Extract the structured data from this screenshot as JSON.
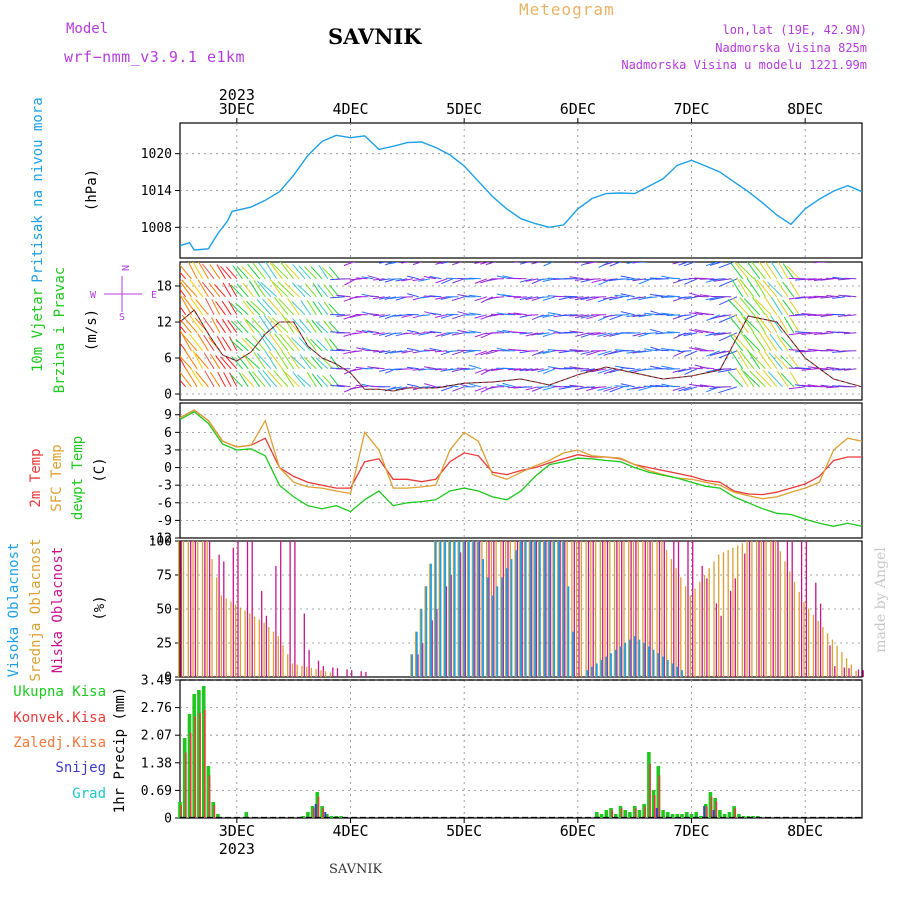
{
  "header": {
    "model_label": "Model",
    "model_name": "wrf−nmm_v3.9.1  e1km",
    "station": "SAVNIK",
    "product": "Meteogram",
    "lonlat": "lon,lat (19E, 42.9N)",
    "elevation": "Nadmorska Visina 825m",
    "model_elevation": "Nadmorska Visina u modelu 1221.99m",
    "footer_station": "SAVNIK",
    "credit": "made by Angel"
  },
  "colors": {
    "pressure": "#1ea0e6",
    "temp2m": "#e83a3a",
    "sfc_temp": "#dca032",
    "dewpoint": "#1ec81e",
    "cloud_high": "#1ea0e6",
    "cloud_mid": "#dca032",
    "cloud_low": "#c8148c",
    "precip_total": "#1ec81e",
    "precip_conv": "#e83a3a",
    "precip_frz": "#f0783c",
    "precip_snow": "#3c3cc8",
    "precip_grad": "#1ec8c8",
    "header_purple": "#b43cdc",
    "header_orange": "#e6b464"
  },
  "chart_data": {
    "type": "line",
    "time_axis": {
      "year": "2023",
      "start": "2023-12-02T12:00",
      "end": "2023-12-08T12:00",
      "tick_labels": [
        "3DEC",
        "4DEC",
        "5DEC",
        "6DEC",
        "7DEC",
        "8DEC"
      ]
    },
    "panels": [
      {
        "id": "pressure",
        "ylabel": "Pritisak na nivou mora",
        "unit": "(hPa)",
        "yticks": [
          1008,
          1014,
          1020
        ],
        "ylim": [
          1003,
          1025
        ],
        "series": [
          {
            "key": "pressure",
            "x_hours": [
              0,
              2,
              3,
              6,
              8,
              10,
              11,
              15,
              18,
              21,
              24,
              27,
              30,
              33,
              36,
              39,
              42,
              45,
              48,
              51,
              54,
              57,
              60,
              63,
              66,
              69,
              72,
              75,
              78,
              81,
              84,
              87,
              90,
              93,
              96,
              99,
              102,
              105,
              108,
              111,
              114,
              117,
              120,
              123,
              126,
              129,
              132,
              135,
              138,
              141,
              144
            ],
            "values": [
              1005,
              1005.5,
              1004.3,
              1004.5,
              1007,
              1009,
              1010.6,
              1011.3,
              1012.4,
              1013.8,
              1016.5,
              1019.7,
              1022,
              1023,
              1022.6,
              1022.9,
              1020.7,
              1021.2,
              1021.8,
              1021.9,
              1021,
              1019.8,
              1018,
              1015.5,
              1013,
              1011,
              1009.4,
              1008.6,
              1008,
              1008.4,
              1011,
              1012.7,
              1013.5,
              1013.6,
              1013.5,
              1014.7,
              1015.9,
              1018.1,
              1018.9,
              1018,
              1017,
              1015.4,
              1013.8,
              1012,
              1010,
              1008.5,
              1011,
              1012.6,
              1013.9,
              1014.8,
              1013.8
            ]
          }
        ]
      },
      {
        "id": "wind",
        "ylabel_line1": "10m Vjetar",
        "ylabel_line2": "Brzina i Pravac",
        "unit": "(m/s)",
        "compass": {
          "n": "N",
          "s": "S",
          "w": "W",
          "e": "E"
        },
        "yticks": [
          0,
          6,
          12,
          18
        ],
        "ylim": [
          -1,
          22
        ],
        "series": [
          {
            "key": "wind_speed",
            "x_hours": [
              0,
              3,
              6,
              9,
              12,
              15,
              18,
              21,
              24,
              27,
              30,
              33,
              36,
              39,
              42,
              45,
              48,
              54,
              60,
              66,
              72,
              78,
              84,
              90,
              96,
              102,
              108,
              114,
              120,
              126,
              132,
              138,
              144
            ],
            "values": [
              12,
              14,
              10,
              6.5,
              5.5,
              7,
              10,
              12,
              12,
              8,
              6,
              5,
              3.5,
              0.8,
              0.8,
              0.5,
              1,
              1,
              1.8,
              2,
              2.5,
              1.5,
              3.2,
              4.5,
              3.5,
              2.5,
              3,
              4,
              13,
              12,
              6,
              2.5,
              1.2
            ]
          }
        ]
      },
      {
        "id": "temperature",
        "ylabel_line1": "2m Temp",
        "ylabel_line2": "SFC Temp",
        "ylabel_line3": "dewpt Temp",
        "unit": "(C)",
        "yticks": [
          -12,
          -9,
          -6,
          -3,
          0,
          3,
          6,
          9
        ],
        "ylim": [
          -12,
          11
        ],
        "series": [
          {
            "key": "temp2m",
            "name": "2m Temp",
            "x_hours": [
              0,
              3,
              6,
              9,
              12,
              15,
              18,
              21,
              24,
              27,
              30,
              33,
              36,
              39,
              42,
              45,
              48,
              51,
              54,
              57,
              60,
              63,
              66,
              69,
              72,
              75,
              78,
              81,
              84,
              87,
              90,
              93,
              96,
              99,
              102,
              105,
              108,
              111,
              114,
              117,
              120,
              123,
              126,
              129,
              132,
              135,
              138,
              141,
              144
            ],
            "values": [
              8.5,
              9.8,
              8,
              4.5,
              3.5,
              3.8,
              5,
              0,
              -1.5,
              -2.5,
              -3,
              -3.5,
              -3.5,
              1,
              1.5,
              -2,
              -2,
              -2.4,
              -2,
              1,
              2.5,
              2,
              -0.8,
              -1.2,
              -0.5,
              0,
              0.8,
              1.5,
              2.2,
              1.8,
              1.8,
              1.5,
              0.5,
              0,
              -0.5,
              -1,
              -1.5,
              -2.2,
              -2.5,
              -4,
              -4.5,
              -4.6,
              -4.2,
              -3.5,
              -2.8,
              -1.5,
              1.2,
              1.8,
              1.8
            ]
          },
          {
            "key": "sfc_temp",
            "name": "SFC Temp",
            "x_hours": [
              0,
              3,
              6,
              9,
              12,
              15,
              18,
              21,
              24,
              27,
              30,
              33,
              36,
              39,
              42,
              45,
              48,
              51,
              54,
              57,
              60,
              63,
              66,
              69,
              72,
              75,
              78,
              81,
              84,
              87,
              90,
              93,
              96,
              99,
              102,
              105,
              108,
              111,
              114,
              117,
              120,
              123,
              126,
              129,
              132,
              135,
              138,
              141,
              144
            ],
            "values": [
              8.5,
              9.8,
              8,
              4.5,
              3.5,
              3.8,
              8,
              0,
              -2.5,
              -3.3,
              -3.5,
              -4,
              -4.4,
              6,
              3,
              -3.5,
              -3.5,
              -3.3,
              -3,
              3,
              6,
              4.5,
              -1.2,
              -2,
              -0.8,
              0.3,
              1.2,
              2.5,
              3,
              2,
              1.8,
              1.6,
              0.5,
              -0.5,
              -1.2,
              -1.8,
              -2,
              -2.5,
              -3,
              -4.2,
              -4.8,
              -5.3,
              -5,
              -4.2,
              -3.5,
              -2.5,
              3,
              5,
              4.5
            ]
          },
          {
            "key": "dewpoint",
            "name": "dewpt Temp",
            "x_hours": [
              0,
              3,
              6,
              9,
              12,
              15,
              18,
              21,
              24,
              27,
              30,
              33,
              36,
              39,
              42,
              45,
              48,
              51,
              54,
              57,
              60,
              63,
              66,
              69,
              72,
              75,
              78,
              81,
              84,
              87,
              90,
              93,
              96,
              99,
              102,
              105,
              108,
              111,
              114,
              117,
              120,
              123,
              126,
              129,
              132,
              135,
              138,
              141,
              144
            ],
            "values": [
              8.2,
              9.5,
              7.5,
              4,
              3,
              3.2,
              2,
              -3,
              -5,
              -6.5,
              -7,
              -6.5,
              -7.5,
              -5.5,
              -4,
              -6.5,
              -6,
              -5.8,
              -5.5,
              -4,
              -3.5,
              -4,
              -5,
              -5.5,
              -4,
              -1.5,
              0.5,
              1,
              1.6,
              1.5,
              1.2,
              1,
              0,
              -0.8,
              -1.3,
              -1.8,
              -2.5,
              -3.2,
              -3.5,
              -5,
              -6,
              -7,
              -7.8,
              -8,
              -8.8,
              -9.5,
              -10,
              -9.5,
              -10
            ]
          }
        ]
      },
      {
        "id": "clouds",
        "ylabel_line1": "Visoka Oblacnost",
        "ylabel_line2": "Srednja Oblacnost",
        "ylabel_line3": "Niska Oblacnost",
        "unit": "(%)",
        "yticks": [
          0,
          25,
          50,
          75,
          100
        ],
        "ylim": [
          0,
          100
        ],
        "series": [
          {
            "key": "cloud_high",
            "name": "Visoka Oblacnost",
            "x_hours": [
              0,
              12,
              24,
              36,
              48,
              54,
              57,
              60,
              63,
              66,
              72,
              75,
              78,
              81,
              84,
              96,
              108,
              120,
              132,
              144
            ],
            "values": [
              0,
              0,
              0,
              0,
              0,
              100,
              100,
              100,
              100,
              60,
              100,
              100,
              100,
              100,
              0,
              30,
              0,
              0,
              0,
              0
            ]
          },
          {
            "key": "cloud_mid",
            "name": "Srednja Oblacnost",
            "x_hours": [
              0,
              3,
              6,
              9,
              18,
              21,
              24,
              36,
              48,
              54,
              57,
              60,
              63,
              72,
              78,
              84,
              90,
              96,
              102,
              108,
              114,
              120,
              126,
              132,
              144
            ],
            "values": [
              100,
              100,
              100,
              60,
              40,
              30,
              10,
              0,
              0,
              100,
              100,
              100,
              100,
              100,
              100,
              100,
              100,
              100,
              100,
              60,
              90,
              100,
              100,
              55,
              0
            ]
          },
          {
            "key": "cloud_low",
            "name": "Niska Oblacnost",
            "x_hours": [
              0,
              3,
              6,
              9,
              12,
              15,
              18,
              21,
              24,
              27,
              30,
              36,
              48,
              60,
              72,
              84,
              96,
              108,
              114,
              120,
              126,
              132,
              138,
              144
            ],
            "values": [
              100,
              100,
              100,
              85,
              100,
              100,
              45,
              100,
              100,
              20,
              8,
              5,
              0,
              100,
              100,
              100,
              100,
              100,
              45,
              100,
              100,
              100,
              8,
              5
            ]
          }
        ]
      },
      {
        "id": "precip",
        "ylabel": "1hr Precip (mm)",
        "legend": [
          {
            "key": "precip_total",
            "label": "Ukupna Kisa"
          },
          {
            "key": "precip_conv",
            "label": "Konvek.Kisa"
          },
          {
            "key": "precip_frz",
            "label": "Zaledj.Kisa"
          },
          {
            "key": "precip_snow",
            "label": "Snijeg"
          },
          {
            "key": "precip_grad",
            "label": "Grad"
          }
        ],
        "yticks": [
          0,
          0.69,
          1.38,
          2.07,
          2.76,
          3.45
        ],
        "ylim": [
          0,
          3.45
        ],
        "series": [
          {
            "key": "precip_total",
            "name": "Ukupna Kisa",
            "x_hours": [
              0,
              1,
              2,
              3,
              4,
              5,
              6,
              7,
              8,
              14,
              26,
              27,
              28,
              29,
              30,
              31,
              32,
              33,
              34,
              88,
              89,
              90,
              91,
              92,
              93,
              94,
              95,
              96,
              97,
              98,
              99,
              100,
              101,
              102,
              103,
              104,
              105,
              106,
              107,
              108,
              109,
              110,
              111,
              112,
              113,
              114,
              115,
              116,
              117,
              118,
              119,
              120,
              121,
              122
            ],
            "values": [
              0.4,
              2,
              2.6,
              3.1,
              3.2,
              3.3,
              1.3,
              0.4,
              0.1,
              0.15,
              0.05,
              0.15,
              0.3,
              0.65,
              0.3,
              0.1,
              0.05,
              0.05,
              0.05,
              0.15,
              0.1,
              0.2,
              0.25,
              0.1,
              0.3,
              0.2,
              0.15,
              0.3,
              0.2,
              0.35,
              1.65,
              0.7,
              1.3,
              0.2,
              0.15,
              0.1,
              0.1,
              0.1,
              0.15,
              0.1,
              0.15,
              0.05,
              0.35,
              0.65,
              0.5,
              0.2,
              0.1,
              0.15,
              0.3,
              0.1,
              0.05,
              0.05,
              0.05,
              0.05
            ]
          }
        ]
      }
    ]
  }
}
